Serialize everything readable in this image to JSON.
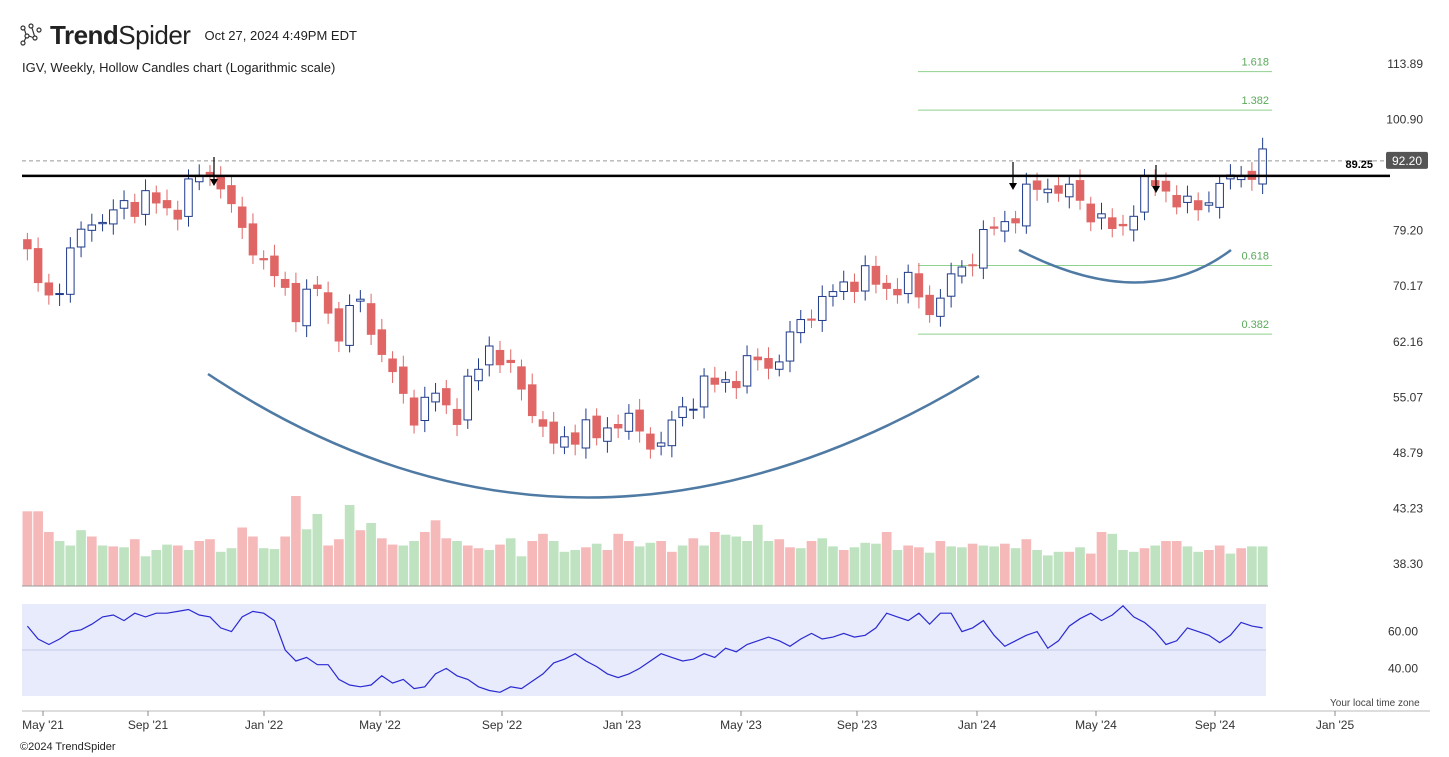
{
  "header": {
    "brand_bold": "Trend",
    "brand_light": "Spider",
    "timestamp": "Oct 27, 2024 4:49PM EDT",
    "subtitle": "IGV, Weekly, Hollow Candles chart (Logarithmic scale)"
  },
  "footer": {
    "copyright": "©2024 TrendSpider",
    "timezone_note": "Your local time zone"
  },
  "colors": {
    "up": "#1f3a8a",
    "down": "#e06666",
    "vol_up": "#bfe3c0",
    "vol_down": "#f6b9b9",
    "rsi_line": "#2a2ad1",
    "rsi_band": "#e8ebfb",
    "fib": "#8fd18f",
    "curve": "#4f7aa3",
    "resistance": "#000000"
  },
  "chart_data": {
    "type": "candlestick",
    "ticker": "IGV",
    "interval": "Weekly",
    "scale": "logarithmic",
    "x_ticks": [
      "May '21",
      "Sep '21",
      "Jan '22",
      "May '22",
      "Sep '22",
      "Jan '23",
      "May '23",
      "Sep '23",
      "Jan '24",
      "May '24",
      "Sep '24",
      "Jan '25"
    ],
    "y_ticks": [
      "113.89",
      "100.90",
      "89.25",
      "79.20",
      "70.17",
      "62.16",
      "55.07",
      "48.79",
      "43.23",
      "38.30"
    ],
    "ylim": [
      36.5,
      120
    ],
    "last_price": "92.20",
    "resistance_level": "89.25",
    "fib_levels": [
      {
        "label": "1.618",
        "value": 112.0
      },
      {
        "label": "1.382",
        "value": 103.0
      },
      {
        "label": "0.618",
        "value": 73.4
      },
      {
        "label": "0.382",
        "value": 63.2
      }
    ],
    "close_path": [
      [
        0,
        75
      ],
      [
        2,
        70
      ],
      [
        4,
        68
      ],
      [
        6,
        72
      ],
      [
        8,
        76
      ],
      [
        10,
        80
      ],
      [
        12,
        82
      ],
      [
        14,
        81
      ],
      [
        16,
        83
      ],
      [
        18,
        83.5
      ],
      [
        20,
        86
      ],
      [
        22,
        84
      ],
      [
        24,
        82
      ],
      [
        26,
        84
      ],
      [
        28,
        87
      ],
      [
        30,
        89
      ],
      [
        32,
        90
      ],
      [
        34,
        88
      ],
      [
        36,
        80
      ],
      [
        38,
        78
      ],
      [
        40,
        76
      ],
      [
        42,
        72
      ],
      [
        44,
        70
      ],
      [
        46,
        67
      ],
      [
        48,
        68
      ],
      [
        50,
        70
      ],
      [
        52,
        66
      ],
      [
        54,
        64
      ],
      [
        56,
        66
      ],
      [
        58,
        68
      ],
      [
        60,
        63
      ],
      [
        62,
        60
      ],
      [
        64,
        56
      ],
      [
        66,
        54
      ],
      [
        68,
        53
      ],
      [
        70,
        56
      ],
      [
        72,
        54
      ],
      [
        74,
        53
      ],
      [
        76,
        56
      ],
      [
        78,
        58
      ],
      [
        80,
        62
      ],
      [
        82,
        60
      ],
      [
        84,
        58
      ],
      [
        86,
        55
      ],
      [
        88,
        54
      ],
      [
        90,
        50
      ],
      [
        92,
        49
      ],
      [
        94,
        51
      ],
      [
        96,
        52
      ],
      [
        98,
        50
      ],
      [
        100,
        51
      ],
      [
        102,
        53
      ],
      [
        104,
        52
      ],
      [
        106,
        51
      ],
      [
        108,
        50
      ],
      [
        110,
        50
      ],
      [
        112,
        52
      ],
      [
        114,
        54
      ],
      [
        116,
        56
      ],
      [
        118,
        57
      ],
      [
        120,
        56
      ],
      [
        122,
        58
      ],
      [
        124,
        58
      ],
      [
        126,
        60
      ],
      [
        128,
        59
      ],
      [
        130,
        60
      ],
      [
        132,
        62
      ],
      [
        134,
        65
      ],
      [
        136,
        67
      ],
      [
        138,
        68
      ],
      [
        140,
        69
      ],
      [
        142,
        71
      ],
      [
        144,
        72
      ],
      [
        146,
        71
      ],
      [
        148,
        70
      ],
      [
        150,
        70
      ],
      [
        152,
        71
      ],
      [
        154,
        69
      ],
      [
        156,
        67
      ],
      [
        158,
        68
      ],
      [
        160,
        71
      ],
      [
        162,
        73
      ],
      [
        164,
        76
      ],
      [
        166,
        78
      ],
      [
        168,
        80
      ],
      [
        170,
        81
      ],
      [
        172,
        84
      ],
      [
        174,
        86
      ],
      [
        176,
        88
      ],
      [
        178,
        87
      ],
      [
        180,
        86
      ],
      [
        182,
        85
      ],
      [
        184,
        83
      ],
      [
        186,
        81
      ],
      [
        188,
        79
      ],
      [
        190,
        80
      ],
      [
        192,
        85
      ],
      [
        194,
        87
      ],
      [
        196,
        88
      ],
      [
        198,
        86
      ],
      [
        200,
        84
      ],
      [
        202,
        82
      ],
      [
        204,
        85
      ],
      [
        206,
        87
      ],
      [
        208,
        88
      ],
      [
        210,
        89
      ],
      [
        212,
        91
      ],
      [
        214,
        92.2
      ]
    ],
    "volume_rel": [
      0.83,
      0.83,
      0.6,
      0.5,
      0.45,
      0.62,
      0.55,
      0.45,
      0.44,
      0.43,
      0.52,
      0.33,
      0.4,
      0.46,
      0.45,
      0.4,
      0.5,
      0.52,
      0.38,
      0.42,
      0.65,
      0.55,
      0.42,
      0.41,
      0.55,
      1.0,
      0.63,
      0.8,
      0.45,
      0.52,
      0.9,
      0.62,
      0.7,
      0.53,
      0.46,
      0.45,
      0.5,
      0.6,
      0.73,
      0.53,
      0.5,
      0.45,
      0.42,
      0.4,
      0.46,
      0.53,
      0.33,
      0.5,
      0.58,
      0.5,
      0.38,
      0.4,
      0.43,
      0.47,
      0.4,
      0.58,
      0.5,
      0.44,
      0.48,
      0.5,
      0.38,
      0.45,
      0.53,
      0.45,
      0.6,
      0.57,
      0.55,
      0.5,
      0.68,
      0.5,
      0.52,
      0.43,
      0.42,
      0.5,
      0.53,
      0.44,
      0.4,
      0.43,
      0.48,
      0.47,
      0.6,
      0.4,
      0.45,
      0.43,
      0.37,
      0.5,
      0.44,
      0.43,
      0.47,
      0.45,
      0.44,
      0.47,
      0.42,
      0.52,
      0.4,
      0.34,
      0.38,
      0.38,
      0.43,
      0.36,
      0.6,
      0.58,
      0.4,
      0.38,
      0.42,
      0.45,
      0.5,
      0.5,
      0.44,
      0.38,
      0.4,
      0.45,
      0.36,
      0.42,
      0.44,
      0.44
    ],
    "volume_up": [
      0,
      0,
      0,
      1,
      1,
      1,
      0,
      1,
      0,
      1,
      0,
      1,
      1,
      1,
      0,
      1,
      0,
      0,
      1,
      1,
      0,
      0,
      1,
      1,
      0,
      0,
      1,
      1,
      0,
      0,
      1,
      0,
      1,
      0,
      0,
      1,
      1,
      0,
      0,
      0,
      1,
      0,
      0,
      1,
      0,
      1,
      1,
      0,
      0,
      1,
      1,
      1,
      0,
      1,
      0,
      0,
      0,
      1,
      1,
      0,
      0,
      1,
      0,
      1,
      0,
      1,
      1,
      1,
      1,
      1,
      0,
      0,
      1,
      0,
      1,
      1,
      0,
      1,
      1,
      1,
      0,
      1,
      0,
      0,
      1,
      0,
      1,
      1,
      0,
      1,
      1,
      0,
      1,
      0,
      1,
      1,
      1,
      0,
      1,
      0,
      0,
      1,
      1,
      1,
      0,
      1,
      0,
      0,
      1,
      1,
      0,
      0,
      1,
      0,
      1,
      1
    ],
    "rsi": [
      63,
      56,
      53,
      56,
      60,
      61,
      64,
      68,
      69,
      66,
      70,
      68,
      70,
      70,
      71,
      72,
      69,
      68,
      62,
      60,
      68,
      71,
      70,
      66,
      50,
      44,
      46,
      42,
      42,
      34,
      31,
      30,
      31,
      36,
      32,
      34,
      29,
      30,
      37,
      40,
      36,
      34,
      30,
      28,
      27,
      30,
      29,
      33,
      37,
      43,
      45,
      48,
      44,
      41,
      37,
      35,
      37,
      40,
      44,
      48,
      46,
      44,
      45,
      48,
      46,
      51,
      49,
      53,
      55,
      57,
      55,
      52,
      56,
      59,
      56,
      57,
      59,
      57,
      58,
      62,
      70,
      68,
      66,
      70,
      64,
      70,
      70,
      60,
      62,
      66,
      58,
      52,
      55,
      58,
      60,
      51,
      55,
      63,
      67,
      70,
      66,
      69,
      74,
      68,
      65,
      60,
      53,
      55,
      62,
      60,
      58,
      54,
      58,
      65,
      63,
      62
    ],
    "rsi_ticks": [
      "60.00",
      "40.00"
    ],
    "rsi_range": [
      25,
      75
    ],
    "annotations": {
      "arrows": 3,
      "large_cup": "rounded bottom 2022–2023",
      "small_cup": "rounded bottom 2024"
    }
  }
}
